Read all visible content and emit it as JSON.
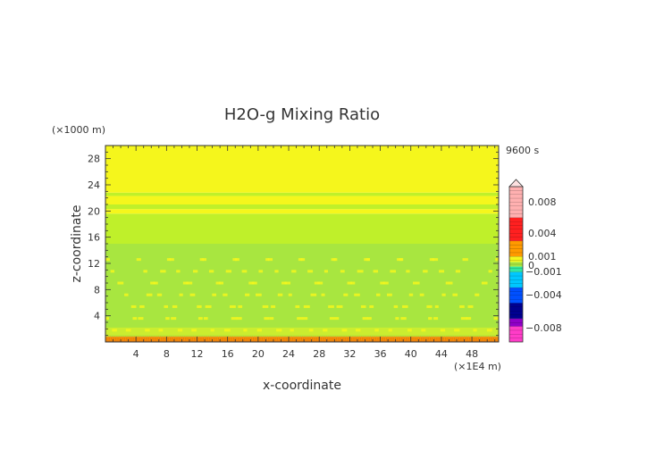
{
  "chart_data": {
    "type": "heatmap",
    "title": "H2O-g Mixing Ratio",
    "xlabel": "x-coordinate",
    "ylabel": "z-coordinate",
    "x_unit": "(×1E4 m)",
    "y_unit": "(×1000 m)",
    "time_label": "9600 s",
    "xlim": [
      0,
      51.5
    ],
    "ylim": [
      0,
      30
    ],
    "x_ticks": [
      4,
      8,
      12,
      16,
      20,
      24,
      28,
      32,
      36,
      40,
      44,
      48
    ],
    "y_ticks": [
      4,
      8,
      12,
      16,
      20,
      24,
      28
    ],
    "colorbar": {
      "tick_labels": [
        "0.008",
        "0.004",
        "0.001",
        "0",
        "−0.001",
        "−0.004",
        "−0.008"
      ],
      "tick_values": [
        0.008,
        0.004,
        0.001,
        0,
        -0.001,
        -0.004,
        -0.008
      ],
      "range": [
        -0.01,
        0.01
      ]
    },
    "bands": [
      {
        "z_from": 0,
        "z_to": 0.8,
        "value": 0.002,
        "color": "#e87d0c"
      },
      {
        "z_from": 0.8,
        "z_to": 15,
        "value": 0.0,
        "color": "#a8e640"
      },
      {
        "z_from": 15,
        "z_to": 19.6,
        "value": 0.0,
        "color": "#bff02a"
      },
      {
        "z_from": 19.6,
        "z_to": 20.3,
        "value": 0.0004,
        "color": "#f5f61c"
      },
      {
        "z_from": 20.3,
        "z_to": 21.0,
        "value": 0.0,
        "color": "#bff02a"
      },
      {
        "z_from": 21.0,
        "z_to": 22.3,
        "value": 0.0004,
        "color": "#f5f61c"
      },
      {
        "z_from": 22.3,
        "z_to": 22.8,
        "value": 0.0,
        "color": "#bff02a"
      },
      {
        "z_from": 22.8,
        "z_to": 30,
        "value": 0.0004,
        "color": "#f5f61c"
      }
    ],
    "colors": {
      "positive_high": "#ffb0b0",
      "positive": "#ff2020",
      "orange": "#ff9a00",
      "yellow": "#f5f61c",
      "zero": "#a8e640",
      "cyan": "#00c8ff",
      "blue": "#0050ff",
      "navy": "#000090",
      "purple": "#9000c8",
      "magenta": "#ff3cc8"
    }
  }
}
